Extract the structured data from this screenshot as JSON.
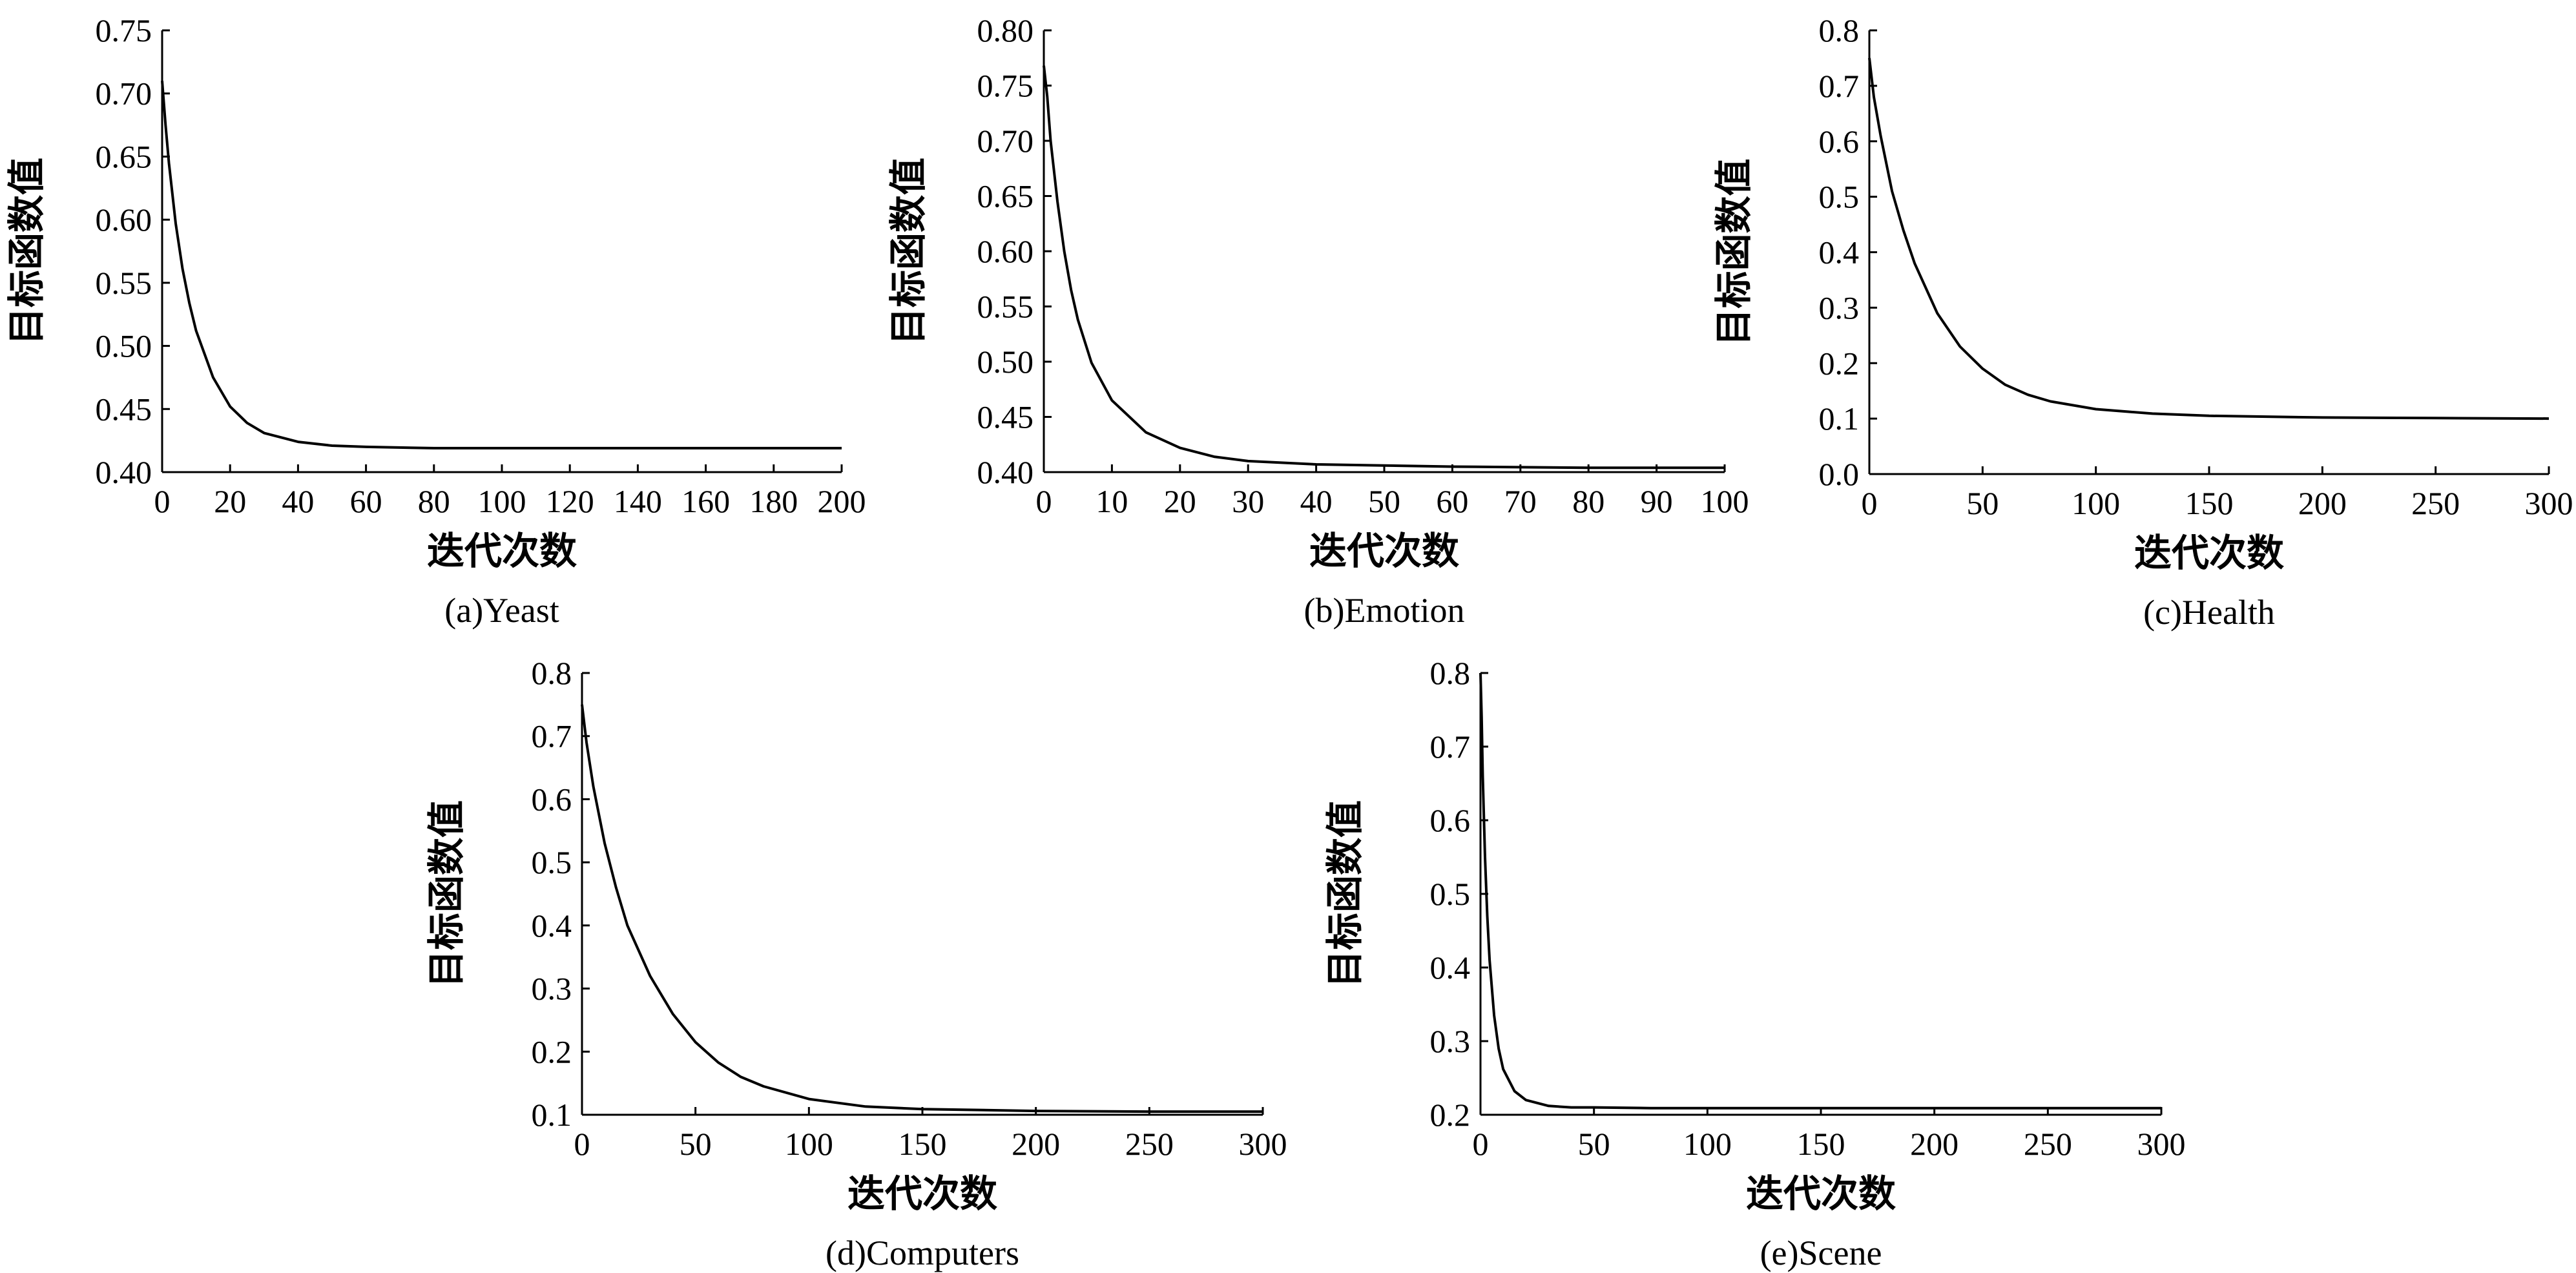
{
  "chart_data": [
    {
      "type": "line",
      "caption": "(a)Yeast",
      "xlabel": "迭代次数",
      "ylabel": "目标函数值",
      "xlim": [
        0,
        200
      ],
      "ylim": [
        0.4,
        0.75
      ],
      "xticks": [
        0,
        20,
        40,
        60,
        80,
        100,
        120,
        140,
        160,
        180,
        200
      ],
      "yticks": [
        0.4,
        0.45,
        0.5,
        0.55,
        0.6,
        0.65,
        0.7,
        0.75
      ],
      "ytick_decimals": 2,
      "grid": false,
      "series": [
        {
          "x": [
            0,
            1,
            2,
            4,
            6,
            8,
            10,
            15,
            20,
            25,
            30,
            40,
            50,
            60,
            80,
            100,
            150,
            200
          ],
          "y": [
            0.71,
            0.675,
            0.645,
            0.597,
            0.561,
            0.534,
            0.512,
            0.475,
            0.452,
            0.439,
            0.431,
            0.424,
            0.421,
            0.42,
            0.419,
            0.419,
            0.419,
            0.419
          ]
        }
      ]
    },
    {
      "type": "line",
      "caption": "(b)Emotion",
      "xlabel": "迭代次数",
      "ylabel": "目标函数值",
      "xlim": [
        0,
        100
      ],
      "ylim": [
        0.4,
        0.8
      ],
      "xticks": [
        0,
        10,
        20,
        30,
        40,
        50,
        60,
        70,
        80,
        90,
        100
      ],
      "yticks": [
        0.4,
        0.45,
        0.5,
        0.55,
        0.6,
        0.65,
        0.7,
        0.75,
        0.8
      ],
      "ytick_decimals": 2,
      "grid": false,
      "series": [
        {
          "x": [
            0,
            0.5,
            1,
            2,
            3,
            4,
            5,
            7,
            10,
            15,
            20,
            25,
            30,
            40,
            50,
            60,
            80,
            100
          ],
          "y": [
            0.768,
            0.74,
            0.7,
            0.645,
            0.6,
            0.565,
            0.538,
            0.499,
            0.465,
            0.436,
            0.422,
            0.414,
            0.41,
            0.407,
            0.406,
            0.405,
            0.404,
            0.404
          ]
        }
      ]
    },
    {
      "type": "line",
      "caption": "(c)Health",
      "xlabel": "迭代次数",
      "ylabel": "目标函数值",
      "xlim": [
        0,
        300
      ],
      "ylim": [
        0.0,
        0.8
      ],
      "xticks": [
        0,
        50,
        100,
        150,
        200,
        250,
        300
      ],
      "yticks": [
        0.0,
        0.1,
        0.2,
        0.3,
        0.4,
        0.5,
        0.6,
        0.7,
        0.8
      ],
      "ytick_decimals": 1,
      "grid": false,
      "series": [
        {
          "x": [
            0,
            2,
            5,
            10,
            15,
            20,
            30,
            40,
            50,
            60,
            70,
            80,
            100,
            125,
            150,
            200,
            250,
            300
          ],
          "y": [
            0.75,
            0.68,
            0.61,
            0.51,
            0.44,
            0.38,
            0.29,
            0.23,
            0.19,
            0.161,
            0.143,
            0.131,
            0.117,
            0.109,
            0.105,
            0.102,
            0.101,
            0.1
          ]
        }
      ]
    },
    {
      "type": "line",
      "caption": "(d)Computers",
      "xlabel": "迭代次数",
      "ylabel": "目标函数值",
      "xlim": [
        0,
        300
      ],
      "ylim": [
        0.1,
        0.8
      ],
      "xticks": [
        0,
        50,
        100,
        150,
        200,
        250,
        300
      ],
      "yticks": [
        0.1,
        0.2,
        0.3,
        0.4,
        0.5,
        0.6,
        0.7,
        0.8
      ],
      "ytick_decimals": 1,
      "grid": false,
      "series": [
        {
          "x": [
            0,
            2,
            5,
            10,
            15,
            20,
            30,
            40,
            50,
            60,
            70,
            80,
            100,
            125,
            150,
            200,
            250,
            300
          ],
          "y": [
            0.75,
            0.69,
            0.62,
            0.53,
            0.46,
            0.4,
            0.32,
            0.26,
            0.215,
            0.183,
            0.16,
            0.145,
            0.125,
            0.113,
            0.109,
            0.106,
            0.105,
            0.105
          ]
        }
      ]
    },
    {
      "type": "line",
      "caption": "(e)Scene",
      "xlabel": "迭代次数",
      "ylabel": "目标函数值",
      "xlim": [
        0,
        300
      ],
      "ylim": [
        0.2,
        0.8
      ],
      "xticks": [
        0,
        50,
        100,
        150,
        200,
        250,
        300
      ],
      "yticks": [
        0.2,
        0.3,
        0.4,
        0.5,
        0.6,
        0.7,
        0.8
      ],
      "ytick_decimals": 1,
      "grid": false,
      "series": [
        {
          "x": [
            0,
            0.5,
            1,
            2,
            3,
            4,
            6,
            8,
            10,
            15,
            20,
            30,
            40,
            50,
            75,
            100,
            200,
            300
          ],
          "y": [
            0.8,
            0.74,
            0.66,
            0.55,
            0.47,
            0.41,
            0.335,
            0.29,
            0.262,
            0.232,
            0.22,
            0.212,
            0.21,
            0.21,
            0.209,
            0.209,
            0.209,
            0.209
          ]
        }
      ]
    }
  ]
}
